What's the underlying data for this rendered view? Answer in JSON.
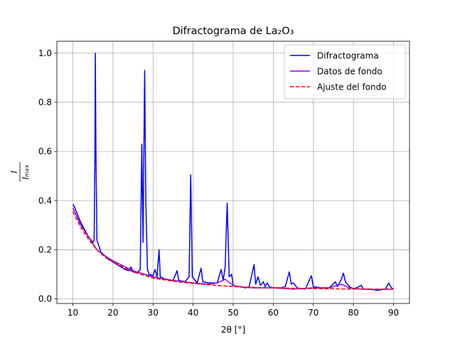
{
  "chart_data": {
    "type": "line",
    "title": "Difractograma de La₂O₃",
    "xlabel": "2θ [°]",
    "ylabel": {
      "numerator": "I",
      "denominator": "Iₘₐₓ"
    },
    "xlim": [
      6,
      94
    ],
    "ylim": [
      -0.0185,
      1.0485
    ],
    "xticks": [
      10,
      20,
      30,
      40,
      50,
      60,
      70,
      80,
      90
    ],
    "yticks": [
      {
        "value": 0,
        "label": "0.0"
      },
      {
        "value": 0.2,
        "label": "0.2"
      },
      {
        "value": 0.4,
        "label": "0.4"
      },
      {
        "value": 0.6,
        "label": "0.6"
      },
      {
        "value": 0.8,
        "label": "0.8"
      },
      {
        "value": 1,
        "label": "1.0"
      }
    ],
    "grid": true,
    "legend": "upper right",
    "series": [
      {
        "name": "Difractograma",
        "color": "#0000ff",
        "style": "solid",
        "x": [
          10,
          10.5,
          11,
          12,
          13,
          14,
          15,
          15.3,
          15.5,
          15.6,
          15.75,
          16,
          17,
          18,
          19,
          20,
          21,
          22,
          23,
          24,
          24.5,
          25,
          26,
          26.8,
          27.2,
          27.5,
          27.9,
          28.2,
          28.6,
          29,
          30,
          30.5,
          31,
          31.5,
          31.8,
          33,
          35,
          36,
          36.4,
          38,
          39,
          39.4,
          39.8,
          41,
          42,
          42.4,
          44,
          46,
          47,
          47.5,
          48,
          48.5,
          49,
          49.6,
          50,
          51,
          52,
          53,
          54,
          55.2,
          55.6,
          56.2,
          56.8,
          57.5,
          58,
          58.5,
          59,
          60,
          62,
          63,
          64,
          64.5,
          65,
          66,
          68,
          69.5,
          70,
          72,
          74,
          75.5,
          76,
          77,
          77.5,
          78,
          79,
          80,
          82,
          82.5,
          84,
          86,
          88,
          88.8,
          89.5,
          90
        ],
        "values": [
          0.385,
          0.37,
          0.35,
          0.31,
          0.28,
          0.25,
          0.23,
          0.24,
          0.6,
          1.0,
          0.6,
          0.24,
          0.19,
          0.175,
          0.16,
          0.15,
          0.14,
          0.13,
          0.12,
          0.115,
          0.13,
          0.11,
          0.105,
          0.12,
          0.63,
          0.23,
          0.93,
          0.4,
          0.12,
          0.1,
          0.095,
          0.12,
          0.09,
          0.2,
          0.09,
          0.08,
          0.075,
          0.115,
          0.075,
          0.07,
          0.09,
          0.505,
          0.09,
          0.065,
          0.125,
          0.07,
          0.065,
          0.065,
          0.12,
          0.075,
          0.13,
          0.39,
          0.09,
          0.1,
          0.055,
          0.05,
          0.05,
          0.045,
          0.05,
          0.14,
          0.06,
          0.09,
          0.055,
          0.07,
          0.05,
          0.065,
          0.05,
          0.045,
          0.045,
          0.05,
          0.11,
          0.06,
          0.065,
          0.045,
          0.04,
          0.095,
          0.05,
          0.045,
          0.045,
          0.07,
          0.05,
          0.08,
          0.105,
          0.07,
          0.05,
          0.04,
          0.055,
          0.04,
          0.04,
          0.035,
          0.04,
          0.065,
          0.045,
          0.04
        ]
      },
      {
        "name": "Datos de fondo",
        "color": "#9400d3",
        "style": "solid",
        "x": [
          10,
          12,
          14,
          16,
          18,
          20,
          25,
          30,
          35,
          40,
          44,
          46,
          48,
          50,
          52,
          55,
          60,
          65,
          70,
          74,
          77,
          79,
          82,
          85,
          90
        ],
        "values": [
          0.37,
          0.3,
          0.25,
          0.2,
          0.175,
          0.155,
          0.115,
          0.09,
          0.075,
          0.065,
          0.06,
          0.065,
          0.08,
          0.055,
          0.048,
          0.045,
          0.045,
          0.04,
          0.045,
          0.045,
          0.06,
          0.045,
          0.04,
          0.038,
          0.04
        ]
      },
      {
        "name": "Ajuste del fondo",
        "color": "#ff0000",
        "style": "dashed",
        "x": [
          10,
          12,
          14,
          16,
          18,
          20,
          25,
          30,
          35,
          40,
          45,
          50,
          55,
          60,
          70,
          80,
          90
        ],
        "values": [
          0.355,
          0.29,
          0.24,
          0.2,
          0.17,
          0.15,
          0.11,
          0.085,
          0.072,
          0.063,
          0.056,
          0.05,
          0.047,
          0.045,
          0.042,
          0.04,
          0.04
        ]
      }
    ]
  }
}
